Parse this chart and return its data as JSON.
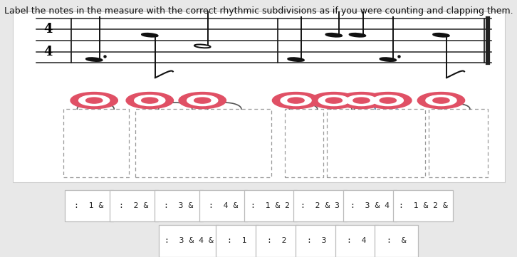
{
  "title": "Label the notes in the measure with the correct rhythmic subdivisions as if you were counting and clapping them.",
  "title_fontsize": 9.0,
  "background_color": "#e8e8e8",
  "music_area_color": "#f2f2f2",
  "button_row1": [
    ":  1 &",
    ":  2 &",
    ":  3 &",
    ":  4 &",
    ":  1 & 2",
    ":  2 & 3",
    ":  3 & 4",
    ":  1 & 2 &"
  ],
  "button_row2": [
    ":  3 & 4 &",
    ":  1",
    ":  2",
    ":  3",
    ":  4",
    ":  &"
  ],
  "button_bg": "#ffffff",
  "button_border": "#bbbbbb",
  "button_text_color": "#222222",
  "red_outer": "#e05065",
  "red_inner": "#e05065",
  "staff_color": "#222222",
  "dash_color": "#999999",
  "arch_color": "#555555",
  "arch_color_blue": "#5599cc",
  "note_color": "#111111"
}
